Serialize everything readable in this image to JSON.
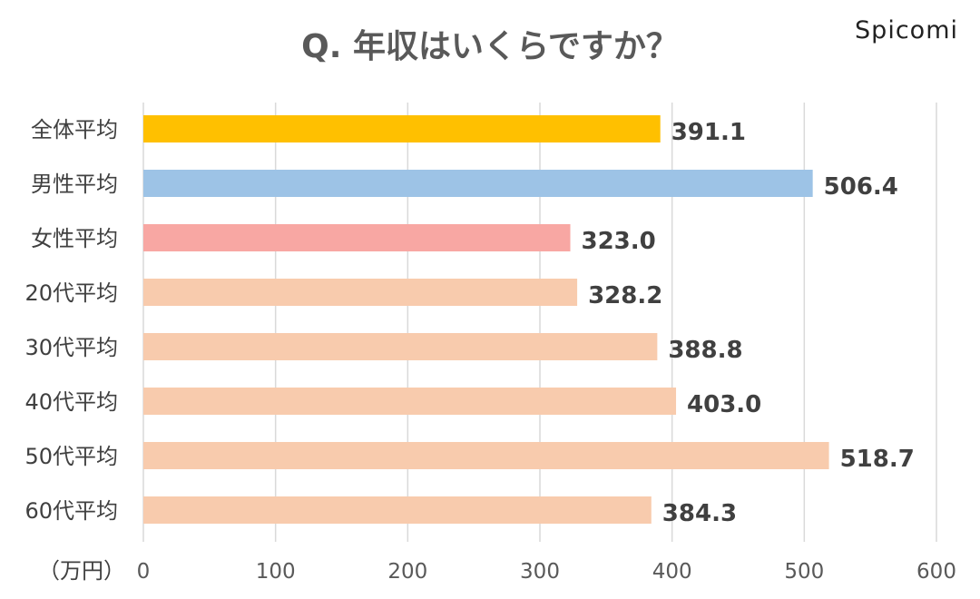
{
  "brand": "Spicomi",
  "chart_data": {
    "type": "bar",
    "orientation": "horizontal",
    "title": "Q. 年収はいくらですか？",
    "unit_label": "（万円）",
    "xlim": [
      0,
      600
    ],
    "ticks": [
      0,
      100,
      200,
      300,
      400,
      500,
      600
    ],
    "grid": true,
    "categories": [
      "全体平均",
      "男性平均",
      "女性平均",
      "20代平均",
      "30代平均",
      "40代平均",
      "50代平均",
      "60代平均"
    ],
    "values": [
      391.1,
      506.4,
      323.0,
      328.2,
      388.8,
      403.0,
      518.7,
      384.3
    ],
    "value_labels": [
      "391.1",
      "506.4",
      "323.0",
      "328.2",
      "388.8",
      "403.0",
      "518.7",
      "384.3"
    ],
    "colors": [
      "#FFC000",
      "#9DC3E6",
      "#F8A7A3",
      "#F8CBAD",
      "#F8CBAD",
      "#F8CBAD",
      "#F8CBAD",
      "#F8CBAD"
    ]
  }
}
